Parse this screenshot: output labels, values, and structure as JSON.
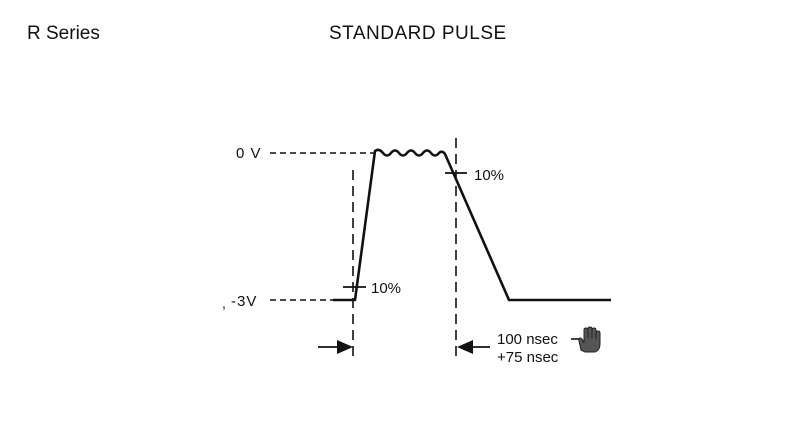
{
  "header": {
    "series": "R Series",
    "title": "STANDARD PULSE"
  },
  "diagram": {
    "level_top": "0 V",
    "level_bottom": "-3V",
    "rise_marker": "10%",
    "fall_marker": "10%",
    "duration_line1": "100 nsec",
    "duration_line2": "+75 nsec"
  },
  "cursor": {
    "icon": "hand-pointer-icon"
  }
}
